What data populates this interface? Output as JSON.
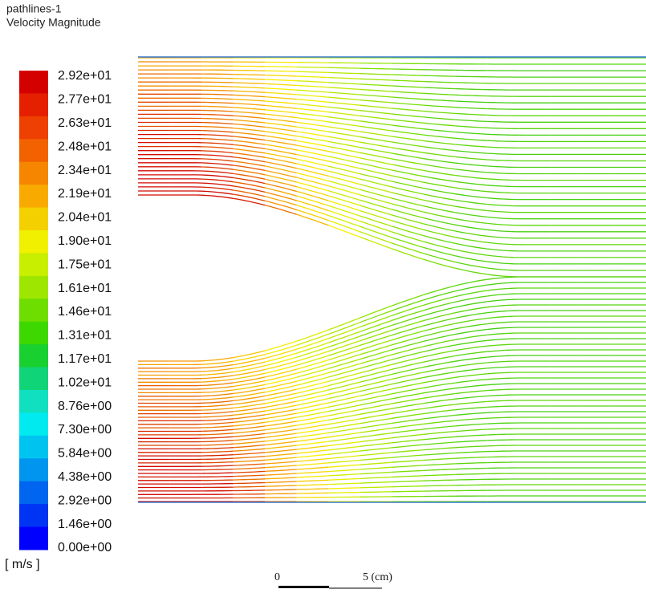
{
  "header": {
    "title": "pathlines-1",
    "subtitle": "Velocity Magnitude"
  },
  "legend": {
    "labels": [
      "2.92e+01",
      "2.77e+01",
      "2.63e+01",
      "2.48e+01",
      "2.34e+01",
      "2.19e+01",
      "2.04e+01",
      "1.90e+01",
      "1.75e+01",
      "1.61e+01",
      "1.46e+01",
      "1.31e+01",
      "1.17e+01",
      "1.02e+01",
      "8.76e+00",
      "7.30e+00",
      "5.84e+00",
      "4.38e+00",
      "2.92e+00",
      "1.46e+00",
      "0.00e+00"
    ],
    "unit": "[ m/s ]"
  },
  "scale_bar": {
    "start": "0",
    "end": "5 (cm)"
  }
}
